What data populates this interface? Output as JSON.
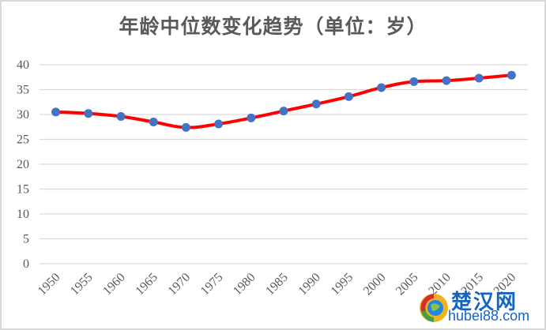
{
  "chart_data": {
    "type": "line",
    "title": "年龄中位数变化趋势（单位：岁）",
    "xlabel": "",
    "ylabel": "",
    "categories": [
      "1950",
      "1955",
      "1960",
      "1965",
      "1970",
      "1975",
      "1980",
      "1985",
      "1990",
      "1995",
      "2000",
      "2005",
      "2010",
      "2015",
      "2020"
    ],
    "series": [
      {
        "name": "年龄中位数",
        "values": [
          30.5,
          30.2,
          29.6,
          28.5,
          27.4,
          28.1,
          29.3,
          30.7,
          32.1,
          33.6,
          35.4,
          36.6,
          36.8,
          37.3,
          37.9
        ],
        "line_color": "#ff0000",
        "marker_color": "#4472c4",
        "smooth": true
      }
    ],
    "ylim": [
      0,
      40
    ],
    "yticks": [
      0,
      5,
      10,
      15,
      20,
      25,
      30,
      35,
      40
    ],
    "grid": true,
    "legend": "none"
  },
  "watermark": {
    "cn": "楚汉网",
    "en": "hubei88.com"
  }
}
